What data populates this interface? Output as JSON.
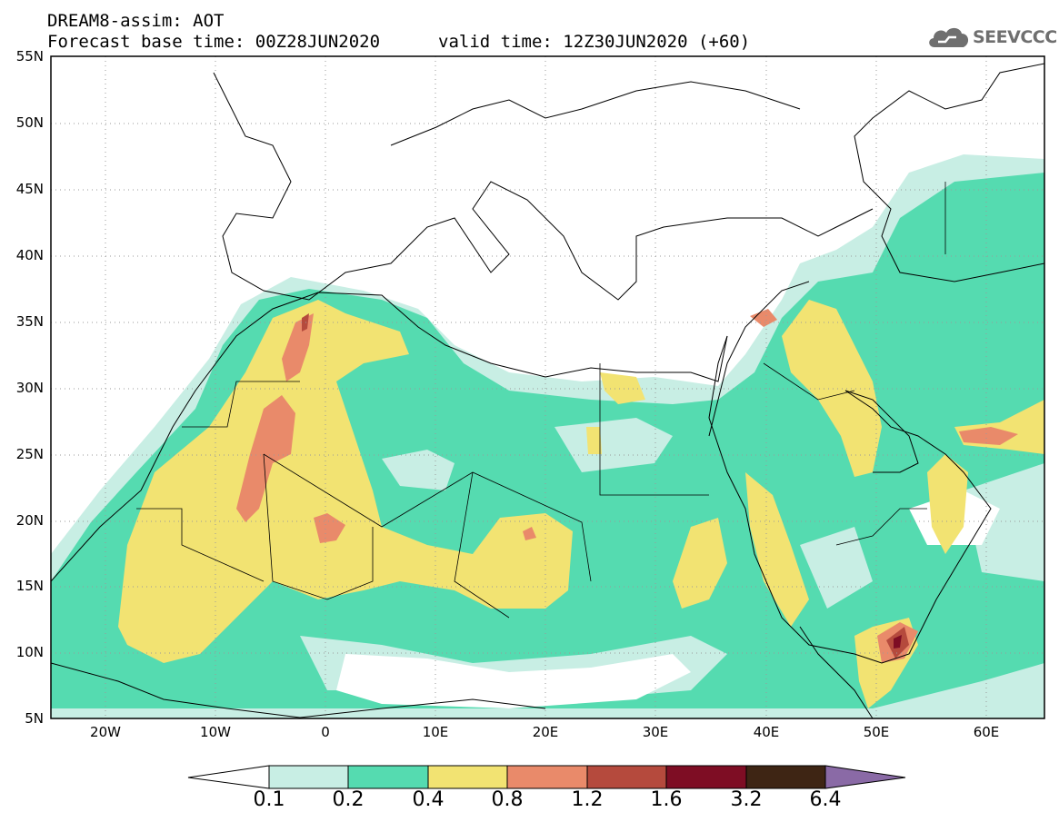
{
  "title": {
    "line1": "DREAM8-assim: AOT",
    "line2_base": "Forecast base time: 00Z28JUN2020",
    "line2_valid": "valid time: 12Z30JUN2020 (+60)"
  },
  "logo": {
    "text": "SEEVCCC",
    "icon": "cloud-icon"
  },
  "map": {
    "variable": "AOT",
    "lat_labels": [
      "55N",
      "50N",
      "45N",
      "40N",
      "35N",
      "30N",
      "25N",
      "20N",
      "15N",
      "10N",
      "5N"
    ],
    "lon_labels": [
      "20W",
      "10W",
      "0",
      "10E",
      "20E",
      "30E",
      "40E",
      "50E",
      "60E"
    ],
    "grid": true
  },
  "colorbar": {
    "labels": [
      "0.1",
      "0.2",
      "0.4",
      "0.8",
      "1.2",
      "1.6",
      "3.2",
      "6.4"
    ],
    "colors": [
      "#c8eee4",
      "#55dbb0",
      "#f2e372",
      "#e98a6a",
      "#b54a3d",
      "#7e0d24",
      "#3e2514",
      "#8a6aa6"
    ],
    "extend": "both"
  }
}
